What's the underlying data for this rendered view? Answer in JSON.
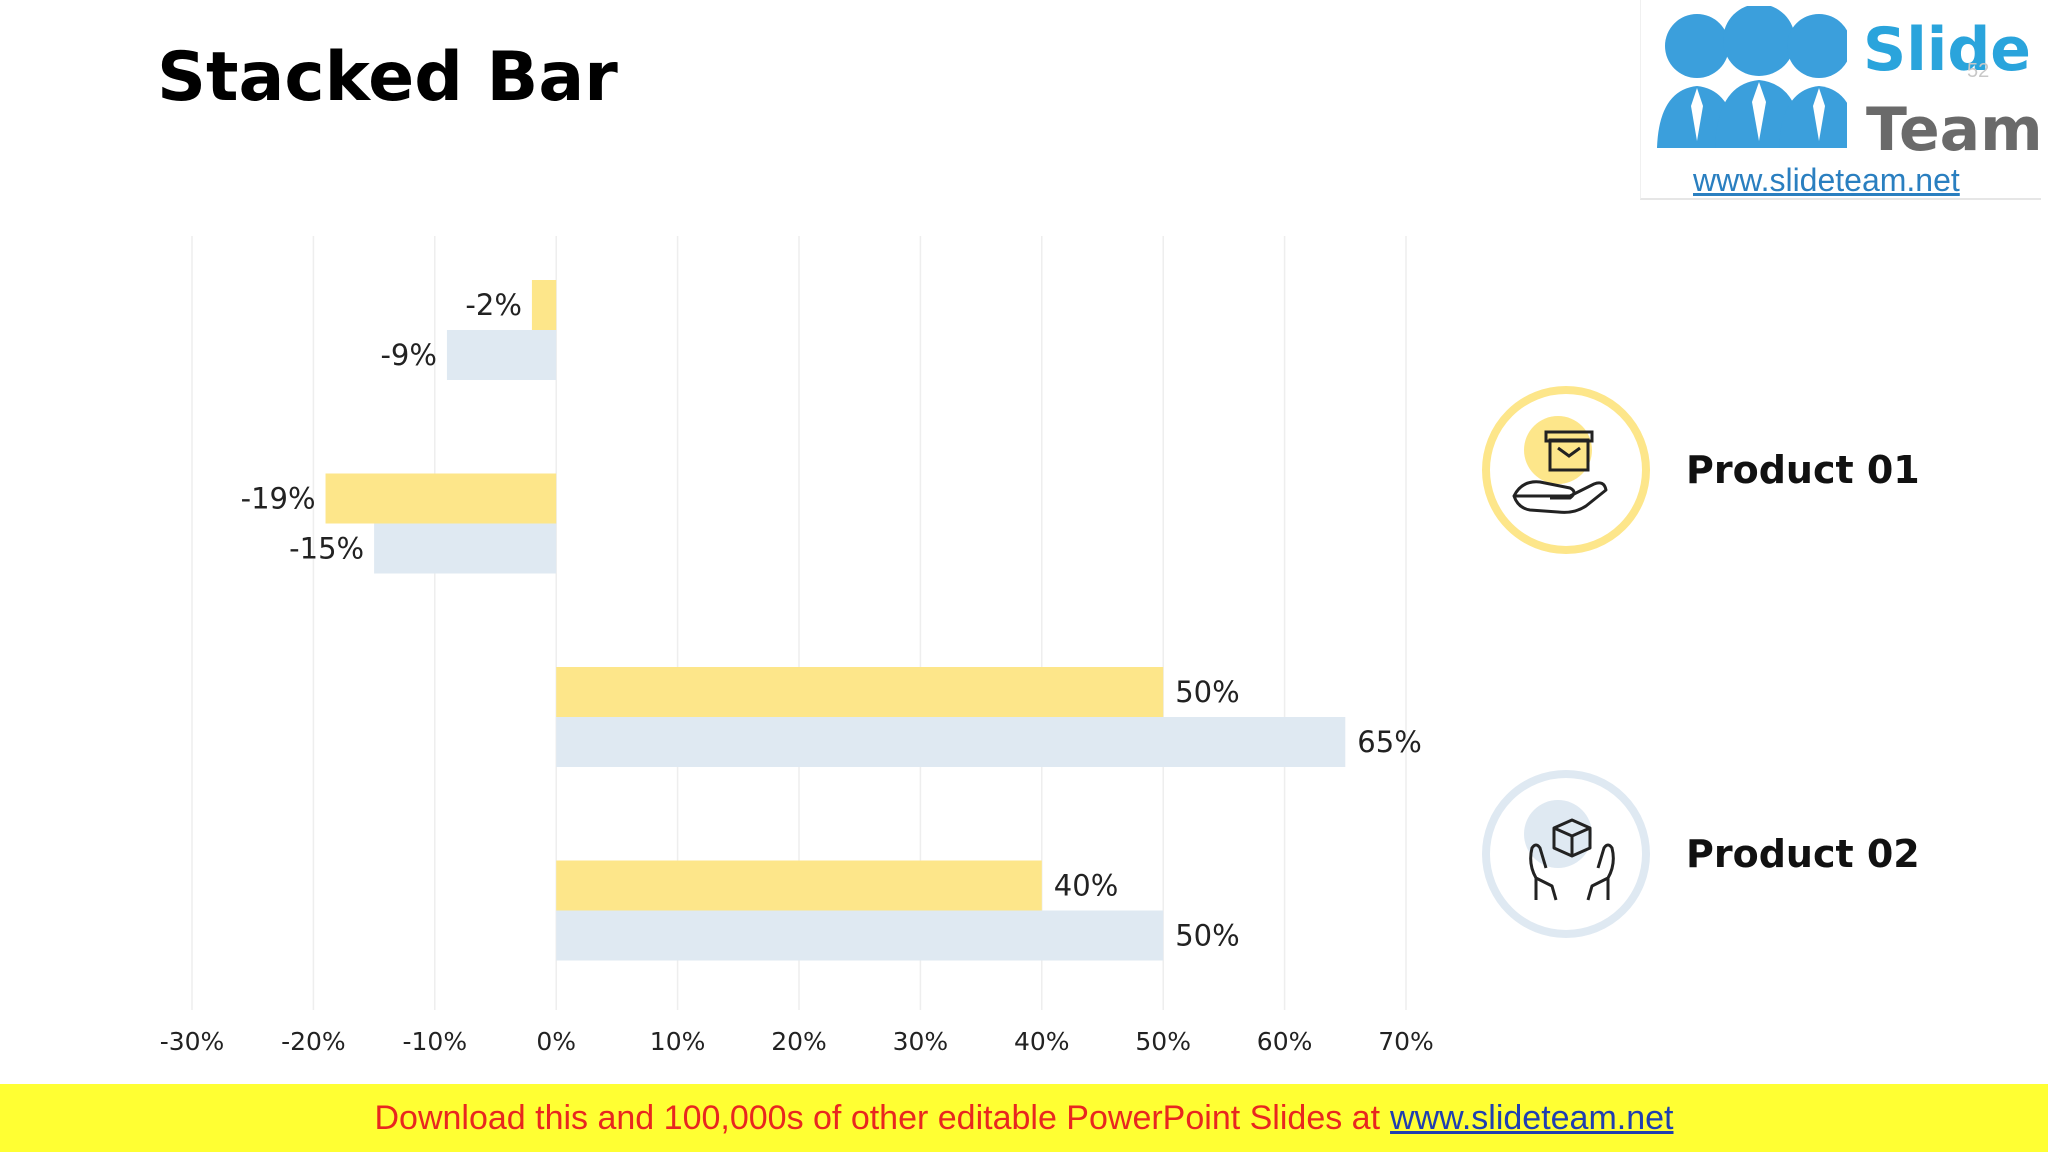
{
  "slide": {
    "title": "Stacked Bar"
  },
  "logo": {
    "word1": "Slide",
    "word2": "Team",
    "url": "www.slideteam.net",
    "page_number": "52"
  },
  "legend": [
    {
      "label": "Product 01",
      "color": "#fde68a",
      "icon": "hand-box-icon"
    },
    {
      "label": "Product 02",
      "color": "#dfe9f2",
      "icon": "hands-package-icon"
    }
  ],
  "banner": {
    "text": "Download this and 100,000s of other editable PowerPoint Slides at",
    "link": "www.slideteam.net"
  },
  "colors": {
    "product01": "#fde68a",
    "product02": "#dfe9f2",
    "grid": "#eeeeee",
    "banner_bg": "#ffff33",
    "banner_text": "#e8271f"
  },
  "chart_data": {
    "type": "bar",
    "orientation": "horizontal",
    "title": "",
    "xlabel": "",
    "ylabel": "",
    "xlim": [
      -30,
      70
    ],
    "x_ticks": [
      -30,
      -20,
      -10,
      0,
      10,
      20,
      30,
      40,
      50,
      60,
      70
    ],
    "x_tick_labels": [
      "-30%",
      "-20%",
      "-10%",
      "0%",
      "10%",
      "20%",
      "30%",
      "40%",
      "50%",
      "60%",
      "70%"
    ],
    "grid": true,
    "legend_position": "right",
    "categories": [
      "",
      "",
      "",
      ""
    ],
    "series": [
      {
        "name": "Product 01",
        "values": [
          -2,
          -19,
          50,
          40
        ],
        "labels": [
          "-2%",
          "-19%",
          "50%",
          "40%"
        ],
        "color": "#fde68a"
      },
      {
        "name": "Product 02",
        "values": [
          -9,
          -15,
          65,
          50
        ],
        "labels": [
          "-9%",
          "-15%",
          "65%",
          "50%"
        ],
        "color": "#dfe9f2"
      }
    ]
  }
}
